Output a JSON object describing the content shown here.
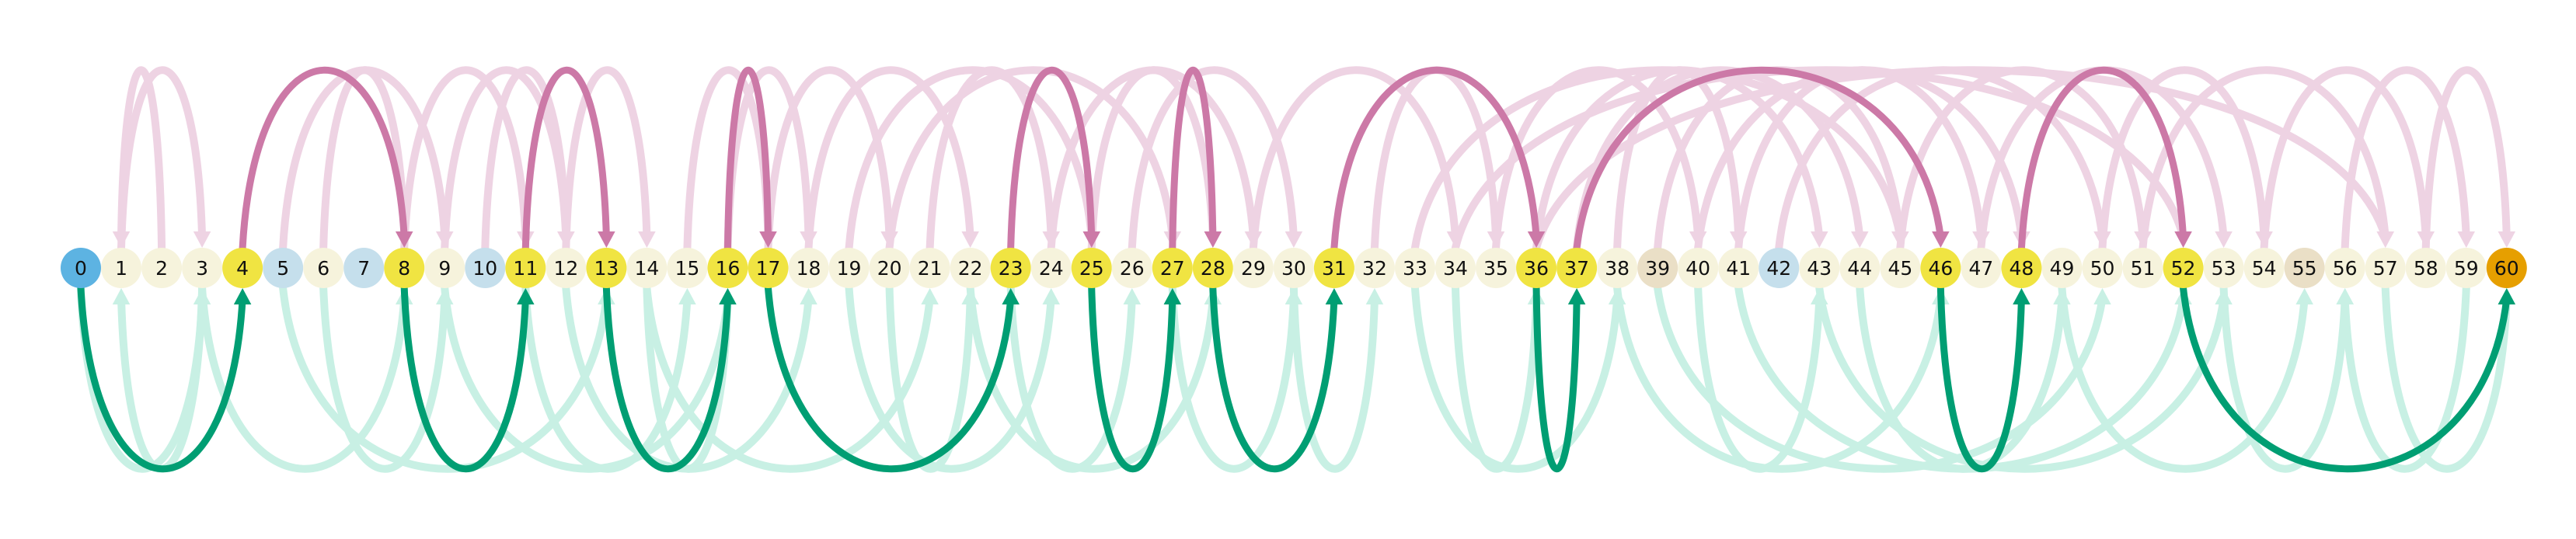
{
  "diagram": {
    "type": "arc-diagram",
    "node_count": 61,
    "nodes": [
      {
        "id": 0,
        "label": "0",
        "color": "#5DB3E2"
      },
      {
        "id": 1,
        "label": "1",
        "color": "#F6F3DC"
      },
      {
        "id": 2,
        "label": "2",
        "color": "#F6F3DC"
      },
      {
        "id": 3,
        "label": "3",
        "color": "#F6F3DC"
      },
      {
        "id": 4,
        "label": "4",
        "color": "#F0E442"
      },
      {
        "id": 5,
        "label": "5",
        "color": "#C5DFEC"
      },
      {
        "id": 6,
        "label": "6",
        "color": "#F6F3DC"
      },
      {
        "id": 7,
        "label": "7",
        "color": "#C5DFEC"
      },
      {
        "id": 8,
        "label": "8",
        "color": "#F0E442"
      },
      {
        "id": 9,
        "label": "9",
        "color": "#F6F3DC"
      },
      {
        "id": 10,
        "label": "10",
        "color": "#C5DFEC"
      },
      {
        "id": 11,
        "label": "11",
        "color": "#F0E442"
      },
      {
        "id": 12,
        "label": "12",
        "color": "#F6F3DC"
      },
      {
        "id": 13,
        "label": "13",
        "color": "#F0E442"
      },
      {
        "id": 14,
        "label": "14",
        "color": "#F6F3DC"
      },
      {
        "id": 15,
        "label": "15",
        "color": "#F6F3DC"
      },
      {
        "id": 16,
        "label": "16",
        "color": "#F0E442"
      },
      {
        "id": 17,
        "label": "17",
        "color": "#F0E442"
      },
      {
        "id": 18,
        "label": "18",
        "color": "#F6F3DC"
      },
      {
        "id": 19,
        "label": "19",
        "color": "#F6F3DC"
      },
      {
        "id": 20,
        "label": "20",
        "color": "#F6F3DC"
      },
      {
        "id": 21,
        "label": "21",
        "color": "#F6F3DC"
      },
      {
        "id": 22,
        "label": "22",
        "color": "#F6F3DC"
      },
      {
        "id": 23,
        "label": "23",
        "color": "#F0E442"
      },
      {
        "id": 24,
        "label": "24",
        "color": "#F6F3DC"
      },
      {
        "id": 25,
        "label": "25",
        "color": "#F0E442"
      },
      {
        "id": 26,
        "label": "26",
        "color": "#F6F3DC"
      },
      {
        "id": 27,
        "label": "27",
        "color": "#F0E442"
      },
      {
        "id": 28,
        "label": "28",
        "color": "#F0E442"
      },
      {
        "id": 29,
        "label": "29",
        "color": "#F6F3DC"
      },
      {
        "id": 30,
        "label": "30",
        "color": "#F6F3DC"
      },
      {
        "id": 31,
        "label": "31",
        "color": "#F0E442"
      },
      {
        "id": 32,
        "label": "32",
        "color": "#F6F3DC"
      },
      {
        "id": 33,
        "label": "33",
        "color": "#F6F3DC"
      },
      {
        "id": 34,
        "label": "34",
        "color": "#F6F3DC"
      },
      {
        "id": 35,
        "label": "35",
        "color": "#F6F3DC"
      },
      {
        "id": 36,
        "label": "36",
        "color": "#F0E442"
      },
      {
        "id": 37,
        "label": "37",
        "color": "#F0E442"
      },
      {
        "id": 38,
        "label": "38",
        "color": "#F6F3DC"
      },
      {
        "id": 39,
        "label": "39",
        "color": "#EADFC6"
      },
      {
        "id": 40,
        "label": "40",
        "color": "#F6F3DC"
      },
      {
        "id": 41,
        "label": "41",
        "color": "#F6F3DC"
      },
      {
        "id": 42,
        "label": "42",
        "color": "#C5DFEC"
      },
      {
        "id": 43,
        "label": "43",
        "color": "#F6F3DC"
      },
      {
        "id": 44,
        "label": "44",
        "color": "#F6F3DC"
      },
      {
        "id": 45,
        "label": "45",
        "color": "#F6F3DC"
      },
      {
        "id": 46,
        "label": "46",
        "color": "#F0E442"
      },
      {
        "id": 47,
        "label": "47",
        "color": "#F6F3DC"
      },
      {
        "id": 48,
        "label": "48",
        "color": "#F0E442"
      },
      {
        "id": 49,
        "label": "49",
        "color": "#F6F3DC"
      },
      {
        "id": 50,
        "label": "50",
        "color": "#F6F3DC"
      },
      {
        "id": 51,
        "label": "51",
        "color": "#F6F3DC"
      },
      {
        "id": 52,
        "label": "52",
        "color": "#F0E442"
      },
      {
        "id": 53,
        "label": "53",
        "color": "#F6F3DC"
      },
      {
        "id": 54,
        "label": "54",
        "color": "#F6F3DC"
      },
      {
        "id": 55,
        "label": "55",
        "color": "#EADFC6"
      },
      {
        "id": 56,
        "label": "56",
        "color": "#F6F3DC"
      },
      {
        "id": 57,
        "label": "57",
        "color": "#F6F3DC"
      },
      {
        "id": 58,
        "label": "58",
        "color": "#F6F3DC"
      },
      {
        "id": 59,
        "label": "59",
        "color": "#F6F3DC"
      },
      {
        "id": 60,
        "label": "60",
        "color": "#E69F00"
      }
    ],
    "path_edges": [
      {
        "from": 0,
        "to": 4,
        "side": "below"
      },
      {
        "from": 4,
        "to": 8,
        "side": "above"
      },
      {
        "from": 8,
        "to": 11,
        "side": "below"
      },
      {
        "from": 11,
        "to": 13,
        "side": "above"
      },
      {
        "from": 13,
        "to": 16,
        "side": "below"
      },
      {
        "from": 16,
        "to": 17,
        "side": "above"
      },
      {
        "from": 17,
        "to": 23,
        "side": "below"
      },
      {
        "from": 23,
        "to": 25,
        "side": "above"
      },
      {
        "from": 25,
        "to": 27,
        "side": "below"
      },
      {
        "from": 27,
        "to": 28,
        "side": "above"
      },
      {
        "from": 28,
        "to": 31,
        "side": "below"
      },
      {
        "from": 31,
        "to": 36,
        "side": "above"
      },
      {
        "from": 36,
        "to": 37,
        "side": "below"
      },
      {
        "from": 37,
        "to": 46,
        "side": "above"
      },
      {
        "from": 46,
        "to": 48,
        "side": "below"
      },
      {
        "from": 48,
        "to": 52,
        "side": "above"
      },
      {
        "from": 52,
        "to": 60,
        "side": "below"
      }
    ],
    "faint_edges": [
      {
        "from": 1,
        "to": 3,
        "side": "above"
      },
      {
        "from": 2,
        "to": 1,
        "side": "above"
      },
      {
        "from": 3,
        "to": 1,
        "side": "below"
      },
      {
        "from": 0,
        "to": 3,
        "side": "below"
      },
      {
        "from": 3,
        "to": 8,
        "side": "below"
      },
      {
        "from": 6,
        "to": 8,
        "side": "above"
      },
      {
        "from": 5,
        "to": 9,
        "side": "above"
      },
      {
        "from": 6,
        "to": 9,
        "side": "below"
      },
      {
        "from": 9,
        "to": 12,
        "side": "above"
      },
      {
        "from": 8,
        "to": 11,
        "side": "above"
      },
      {
        "from": 10,
        "to": 12,
        "side": "above"
      },
      {
        "from": 12,
        "to": 14,
        "side": "above"
      },
      {
        "from": 11,
        "to": 15,
        "side": "below"
      },
      {
        "from": 14,
        "to": 16,
        "side": "below"
      },
      {
        "from": 12,
        "to": 18,
        "side": "below"
      },
      {
        "from": 15,
        "to": 17,
        "side": "above"
      },
      {
        "from": 16,
        "to": 18,
        "side": "above"
      },
      {
        "from": 17,
        "to": 20,
        "side": "above"
      },
      {
        "from": 18,
        "to": 22,
        "side": "above"
      },
      {
        "from": 19,
        "to": 25,
        "side": "above"
      },
      {
        "from": 20,
        "to": 22,
        "side": "below"
      },
      {
        "from": 21,
        "to": 24,
        "side": "above"
      },
      {
        "from": 19,
        "to": 24,
        "side": "below"
      },
      {
        "from": 22,
        "to": 28,
        "side": "below"
      },
      {
        "from": 25,
        "to": 28,
        "side": "above"
      },
      {
        "from": 24,
        "to": 29,
        "side": "above"
      },
      {
        "from": 26,
        "to": 30,
        "side": "above"
      },
      {
        "from": 29,
        "to": 34,
        "side": "above"
      },
      {
        "from": 30,
        "to": 32,
        "side": "below"
      },
      {
        "from": 32,
        "to": 35,
        "side": "above"
      },
      {
        "from": 33,
        "to": 38,
        "side": "below"
      },
      {
        "from": 34,
        "to": 36,
        "side": "below"
      },
      {
        "from": 35,
        "to": 40,
        "side": "above"
      },
      {
        "from": 38,
        "to": 41,
        "side": "above"
      },
      {
        "from": 36,
        "to": 43,
        "side": "above"
      },
      {
        "from": 37,
        "to": 44,
        "side": "above"
      },
      {
        "from": 39,
        "to": 45,
        "side": "above"
      },
      {
        "from": 40,
        "to": 43,
        "side": "below"
      },
      {
        "from": 38,
        "to": 46,
        "side": "below"
      },
      {
        "from": 41,
        "to": 47,
        "side": "above"
      },
      {
        "from": 42,
        "to": 50,
        "side": "above"
      },
      {
        "from": 44,
        "to": 49,
        "side": "below"
      },
      {
        "from": 45,
        "to": 51,
        "side": "above"
      },
      {
        "from": 43,
        "to": 53,
        "side": "below"
      },
      {
        "from": 47,
        "to": 53,
        "side": "above"
      },
      {
        "from": 49,
        "to": 55,
        "side": "below"
      },
      {
        "from": 50,
        "to": 54,
        "side": "above"
      },
      {
        "from": 51,
        "to": 57,
        "side": "above"
      },
      {
        "from": 53,
        "to": 56,
        "side": "below"
      },
      {
        "from": 54,
        "to": 58,
        "side": "above"
      },
      {
        "from": 56,
        "to": 59,
        "side": "above"
      },
      {
        "from": 57,
        "to": 60,
        "side": "below"
      },
      {
        "from": 58,
        "to": 60,
        "side": "above"
      },
      {
        "from": 59,
        "to": 56,
        "side": "below"
      },
      {
        "from": 34,
        "to": 52,
        "side": "above"
      },
      {
        "from": 36,
        "to": 57,
        "side": "above"
      },
      {
        "from": 33,
        "to": 45,
        "side": "above"
      },
      {
        "from": 20,
        "to": 27,
        "side": "above"
      },
      {
        "from": 14,
        "to": 21,
        "side": "below"
      },
      {
        "from": 9,
        "to": 16,
        "side": "below"
      },
      {
        "from": 5,
        "to": 13,
        "side": "below"
      },
      {
        "from": 23,
        "to": 26,
        "side": "below"
      },
      {
        "from": 27,
        "to": 30,
        "side": "below"
      },
      {
        "from": 39,
        "to": 50,
        "side": "below"
      },
      {
        "from": 41,
        "to": 52,
        "side": "below"
      },
      {
        "from": 40,
        "to": 48,
        "side": "above"
      }
    ],
    "colors": {
      "path_above": "#CC79A7",
      "path_below": "#009E73",
      "faint_above": "#EED3E3",
      "faint_below": "#C8F0E4"
    }
  }
}
